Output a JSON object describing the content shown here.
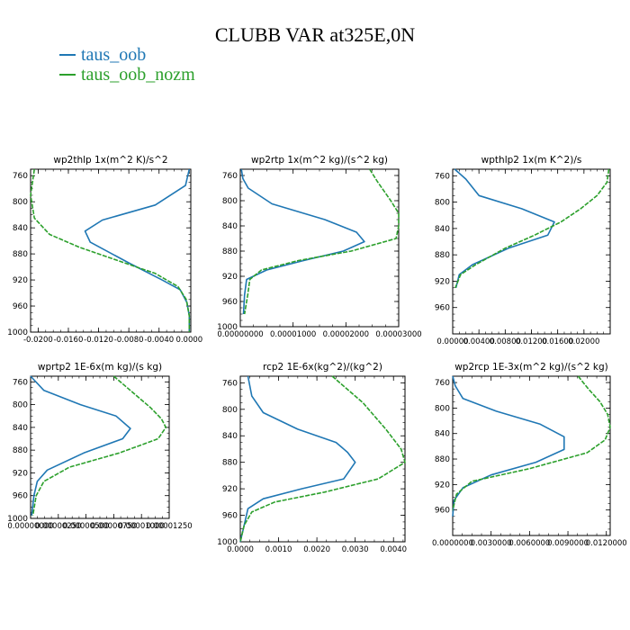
{
  "title": "CLUBB VAR at325E,0N",
  "legend": [
    {
      "name": "taus_oob",
      "color": "#1f77b4"
    },
    {
      "name": "taus_oob_nozm",
      "color": "#2ca02c"
    }
  ],
  "chart_data": [
    {
      "type": "line",
      "title": "wp2thlp   1x(m^2 K)/s^2",
      "xlim": [
        -0.021,
        0.0002
      ],
      "ylim": [
        1000,
        750
      ],
      "yticks": [
        760,
        800,
        840,
        880,
        920,
        960,
        1000
      ],
      "xticks": [
        -0.02,
        -0.016,
        -0.012,
        -0.008,
        -0.004,
        0
      ],
      "xticklabels": [
        "-0.0200",
        "-0.0160",
        "-0.0120",
        "-0.0080",
        "-0.0040",
        "0.0000"
      ],
      "series": [
        {
          "name": "taus_oob",
          "color": "#1f77b4",
          "x": [
            0,
            -0.0005,
            -0.0045,
            -0.0115,
            -0.0138,
            -0.0131,
            -0.0078,
            -0.0036,
            -0.0012,
            -0.0003,
            0,
            0
          ],
          "y": [
            750,
            775,
            805,
            828,
            845,
            862,
            895,
            920,
            935,
            955,
            975,
            1000
          ]
        },
        {
          "name": "taus_oob_nozm",
          "color": "#2ca02c",
          "x": [
            -0.0205,
            -0.021,
            -0.0205,
            -0.0185,
            -0.0145,
            -0.0095,
            -0.0045,
            -0.0015,
            -0.0004,
            0,
            0
          ],
          "y": [
            750,
            790,
            825,
            850,
            870,
            890,
            910,
            930,
            950,
            975,
            1000
          ]
        }
      ]
    },
    {
      "type": "line",
      "title": "wp2rtp   1x(m^2 kg)/(s^2 kg)",
      "xlim": [
        0,
        3e-05
      ],
      "ylim": [
        1000,
        750
      ],
      "yticks": [
        760,
        800,
        840,
        880,
        920,
        960,
        1000
      ],
      "xticks": [
        0,
        1e-05,
        2e-05,
        3e-05
      ],
      "xticklabels": [
        "0.00000000",
        "0.00001000",
        "0.00002000",
        "0.00003000"
      ],
      "series": [
        {
          "name": "taus_oob",
          "color": "#1f77b4",
          "x": [
            2e-07,
            5e-07,
            1.5e-06,
            6e-06,
            1.6e-05,
            2.2e-05,
            2.35e-05,
            1.95e-05,
            1.2e-05,
            5e-06,
            1.2e-06,
            8e-07,
            6e-07
          ],
          "y": [
            750,
            765,
            780,
            805,
            830,
            850,
            865,
            880,
            895,
            910,
            925,
            950,
            980
          ]
        },
        {
          "name": "taus_oob_nozm",
          "color": "#2ca02c",
          "x": [
            2.45e-05,
            2.6e-05,
            2.85e-05,
            3e-05,
            3.05e-05,
            2.95e-05,
            2.1e-05,
            1.1e-05,
            4e-06,
            1.8e-06,
            1.4e-06,
            8e-07
          ],
          "y": [
            750,
            770,
            800,
            820,
            840,
            860,
            880,
            895,
            910,
            925,
            950,
            980
          ]
        }
      ]
    },
    {
      "type": "line",
      "title": "wpthlp2   1x(m K^2)/s",
      "xlim": [
        0,
        0.024
      ],
      "ylim": [
        1000,
        750
      ],
      "yticks": [
        760,
        800,
        840,
        880,
        920,
        960
      ],
      "xticks": [
        0,
        0.004,
        0.008,
        0.012,
        0.016,
        0.02
      ],
      "xticklabels": [
        "0.00000",
        "0.00400",
        "0.00800",
        "0.01200",
        "0.01600",
        "0.02000"
      ],
      "series": [
        {
          "name": "taus_oob",
          "color": "#1f77b4",
          "x": [
            0.0003,
            0.002,
            0.004,
            0.0105,
            0.0155,
            0.0145,
            0.0085,
            0.003,
            0.001,
            0.0005
          ],
          "y": [
            750,
            765,
            790,
            810,
            830,
            850,
            870,
            895,
            910,
            930
          ]
        },
        {
          "name": "taus_oob_nozm",
          "color": "#2ca02c",
          "x": [
            0.0238,
            0.0235,
            0.022,
            0.0195,
            0.0165,
            0.0125,
            0.008,
            0.0035,
            0.0012,
            0.0004
          ],
          "y": [
            750,
            770,
            790,
            810,
            830,
            850,
            870,
            895,
            910,
            930
          ]
        }
      ]
    },
    {
      "type": "line",
      "title": "wprtp2   1E-6x(m kg)/(s kg)",
      "xlim": [
        0,
        1.25e-05
      ],
      "ylim": [
        1000,
        750
      ],
      "yticks": [
        760,
        800,
        840,
        880,
        920,
        960,
        1000
      ],
      "xticks": [
        0,
        2.5e-06,
        5e-06,
        7.5e-06,
        1e-05,
        1.25e-05
      ],
      "xticklabels": [
        "0.00000000",
        "0.00000250",
        "0.00000500",
        "0.00000750",
        "0.00001000",
        "0.00001250"
      ],
      "series": [
        {
          "name": "taus_oob",
          "color": "#1f77b4",
          "x": [
            0,
            1.2e-06,
            4.5e-06,
            7.7e-06,
            9e-06,
            8.3e-06,
            4.8e-06,
            1.5e-06,
            6e-07,
            3e-07,
            1e-07
          ],
          "y": [
            750,
            775,
            800,
            820,
            842,
            860,
            885,
            915,
            935,
            960,
            995
          ]
        },
        {
          "name": "taus_oob_nozm",
          "color": "#2ca02c",
          "x": [
            7.5e-06,
            9.3e-06,
            1.08e-05,
            1.18e-05,
            1.22e-05,
            1.15e-05,
            8e-06,
            3.5e-06,
            1.2e-06,
            5e-07,
            2e-07
          ],
          "y": [
            750,
            780,
            805,
            825,
            840,
            860,
            885,
            910,
            935,
            960,
            995
          ]
        }
      ]
    },
    {
      "type": "line",
      "title": "rcp2   1E-6x(kg^2)/(kg^2)",
      "xlim": [
        0,
        0.0043
      ],
      "ylim": [
        1000,
        750
      ],
      "yticks": [
        760,
        800,
        840,
        880,
        920,
        960,
        1000
      ],
      "xticks": [
        0,
        0.001,
        0.002,
        0.003,
        0.004
      ],
      "xticklabels": [
        "0.0000",
        "0.0010",
        "0.0020",
        "0.0030",
        "0.0040"
      ],
      "series": [
        {
          "name": "taus_oob",
          "color": "#1f77b4",
          "x": [
            0.0002,
            0.0003,
            0.0006,
            0.0015,
            0.0025,
            0.0028,
            0.003,
            0.0027,
            0.0016,
            0.0006,
            0.0002,
            0.0001,
            0
          ],
          "y": [
            750,
            780,
            805,
            830,
            850,
            865,
            880,
            905,
            920,
            935,
            950,
            975,
            1000
          ]
        },
        {
          "name": "taus_oob_nozm",
          "color": "#2ca02c",
          "x": [
            0.0024,
            0.0032,
            0.0038,
            0.0042,
            0.0043,
            0.0036,
            0.0022,
            0.0009,
            0.0003,
            0.0001,
            0
          ],
          "y": [
            750,
            790,
            830,
            860,
            880,
            905,
            925,
            940,
            955,
            975,
            1000
          ]
        }
      ]
    },
    {
      "type": "line",
      "title": "wp2rcp   1E-3x(m^2 kg)/(s^2 kg)",
      "xlim": [
        0,
        0.0123
      ],
      "ylim": [
        1000,
        750
      ],
      "yticks": [
        760,
        800,
        840,
        880,
        920,
        960
      ],
      "xticks": [
        0,
        0.003,
        0.006,
        0.009,
        0.012
      ],
      "xticklabels": [
        "0.0000000",
        "0.0030000",
        "0.0060000",
        "0.0090000",
        "0.0120000"
      ],
      "series": [
        {
          "name": "taus_oob",
          "color": "#1f77b4",
          "x": [
            0,
            0.0002,
            0.0008,
            0.0034,
            0.0068,
            0.0087,
            0.0087,
            0.0065,
            0.003,
            0.0008,
            0.0001,
            0
          ],
          "y": [
            750,
            765,
            785,
            805,
            825,
            845,
            865,
            885,
            905,
            925,
            945,
            970
          ]
        },
        {
          "name": "taus_oob_nozm",
          "color": "#2ca02c",
          "x": [
            0.0098,
            0.0106,
            0.0115,
            0.0121,
            0.0123,
            0.0119,
            0.0105,
            0.006,
            0.0015,
            0.0003,
            0
          ],
          "y": [
            750,
            770,
            790,
            810,
            830,
            850,
            870,
            895,
            915,
            935,
            960
          ]
        }
      ]
    }
  ]
}
